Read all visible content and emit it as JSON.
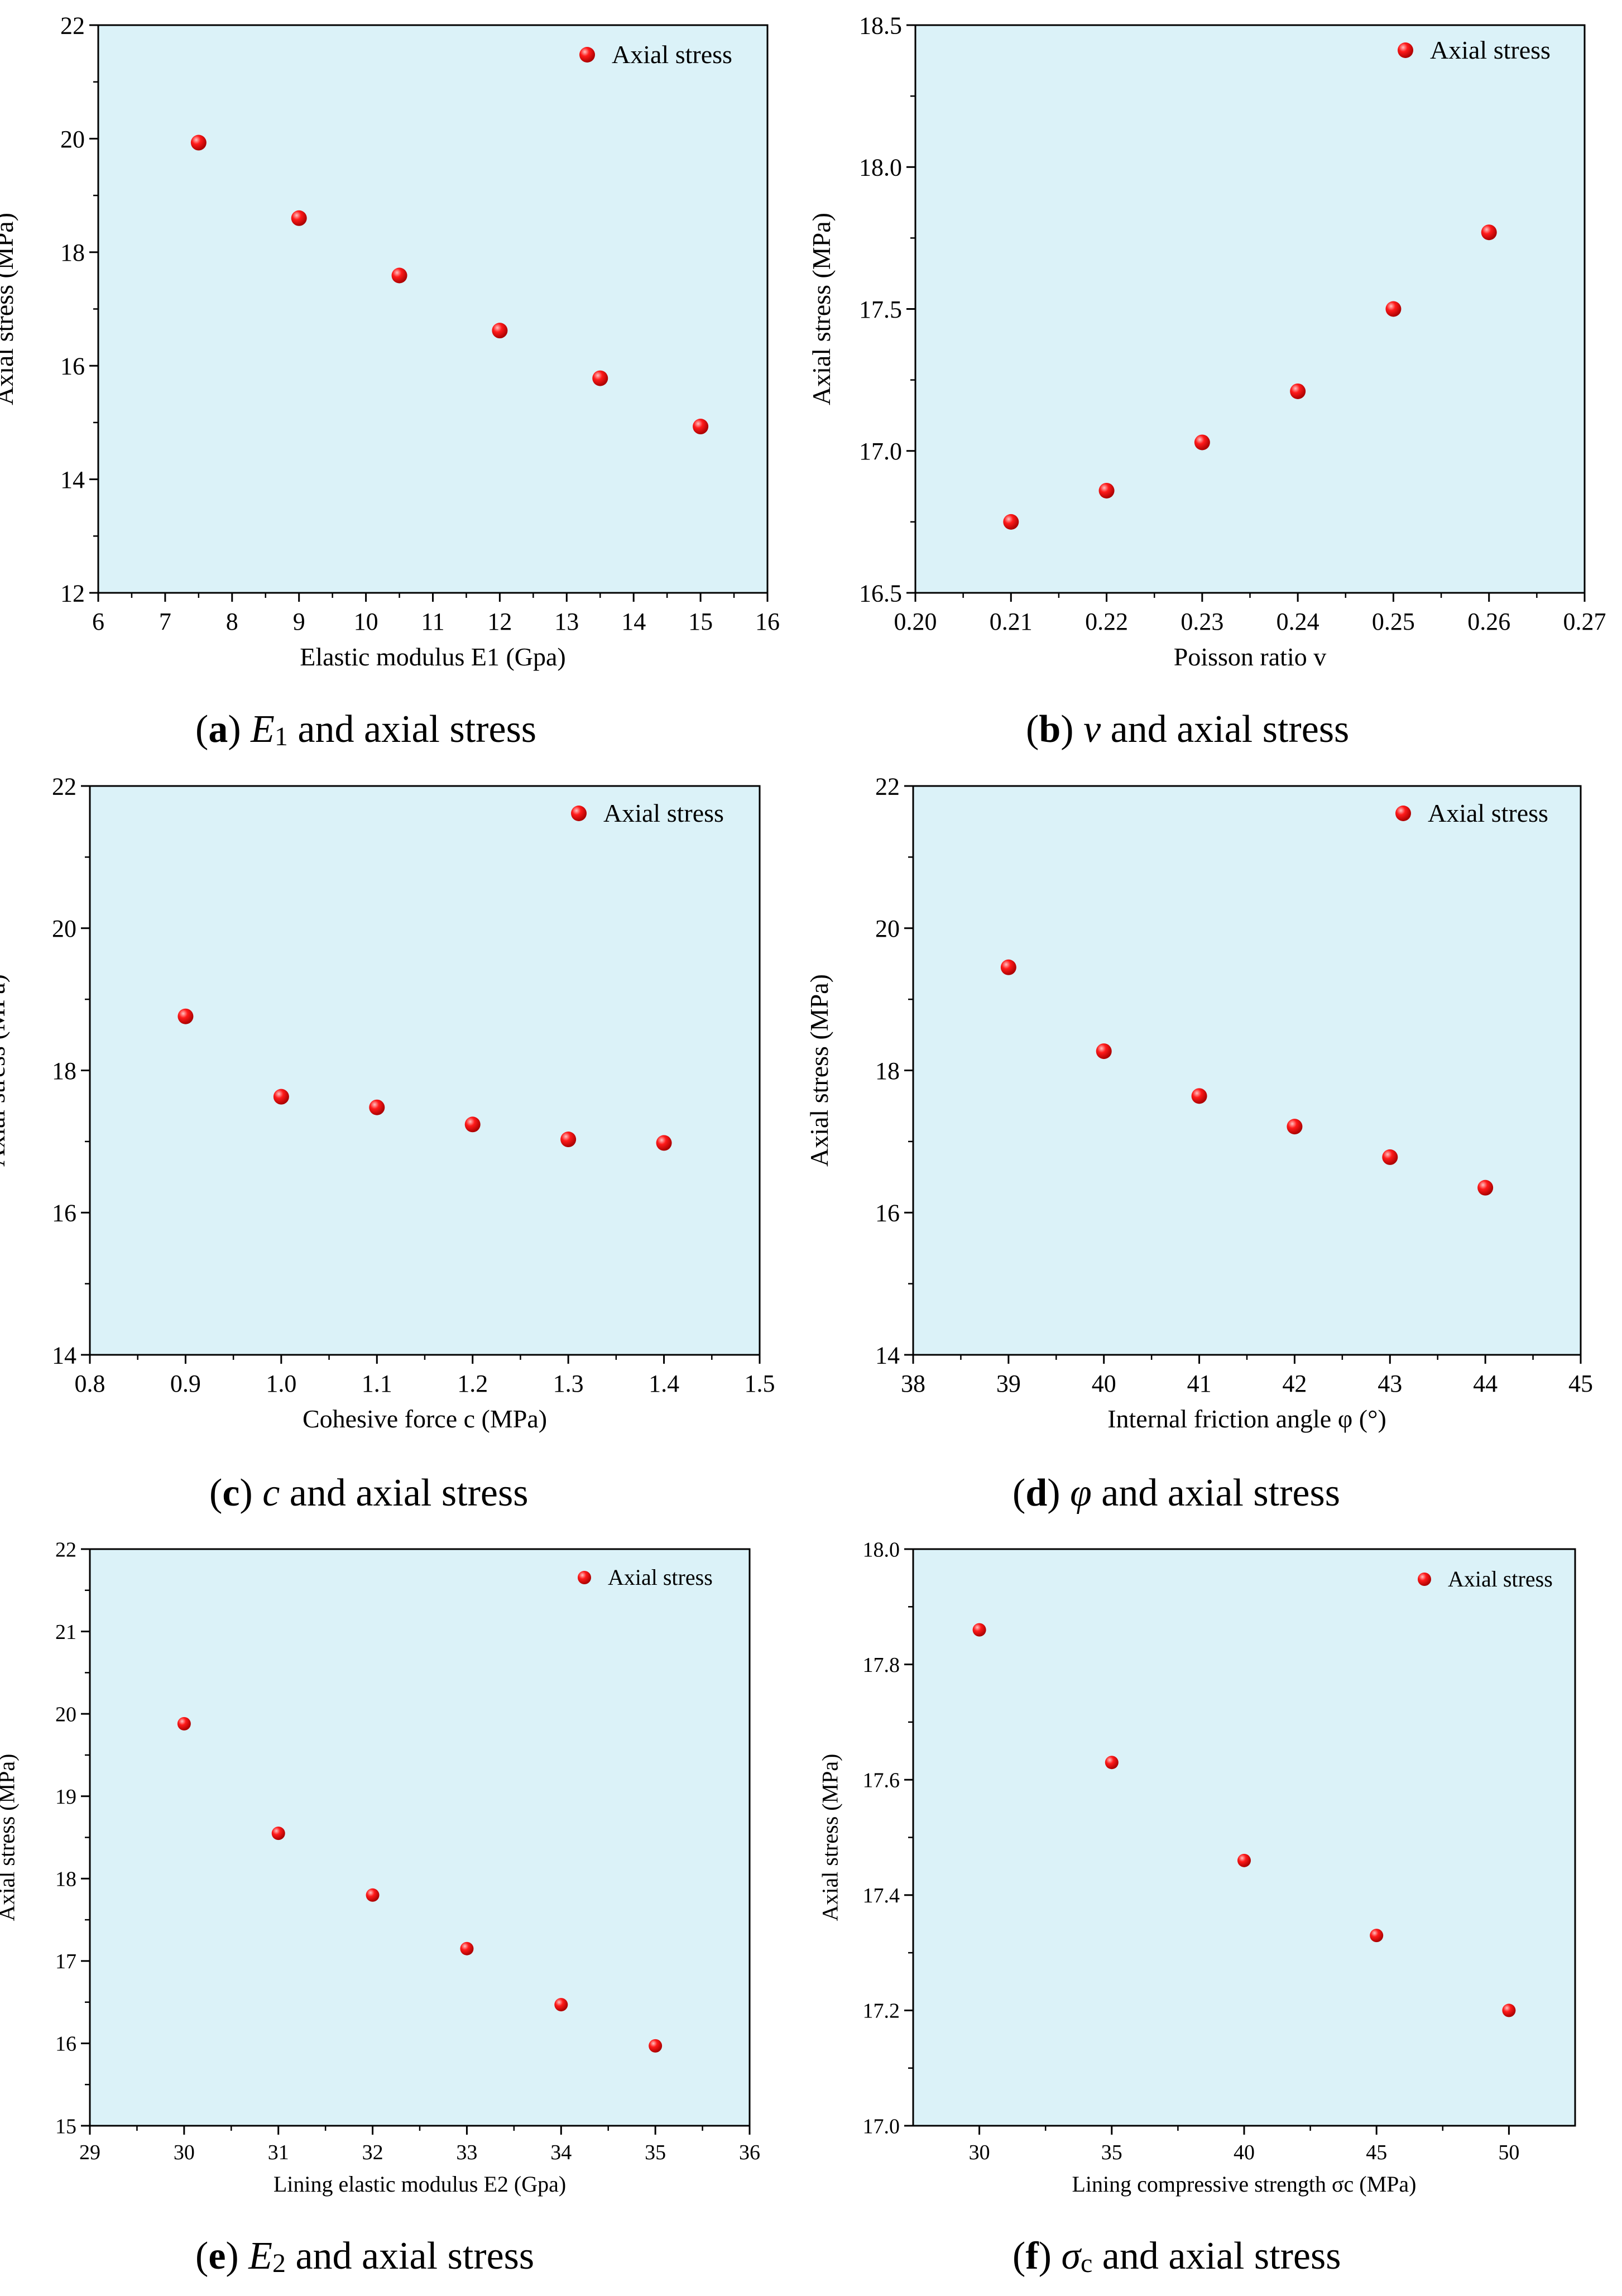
{
  "chart_data": [
    {
      "type": "scatter",
      "panel": "a",
      "legend": "Axial stress",
      "legend_position": "top-right",
      "xlabel": "Elastic modulus E1 (Gpa)",
      "ylabel": "Axial stress (MPa)",
      "xlim": [
        6,
        16
      ],
      "ylim": [
        12,
        22
      ],
      "xticks": [
        6,
        7,
        8,
        9,
        10,
        11,
        12,
        13,
        14,
        15,
        16
      ],
      "yticks": [
        12,
        14,
        16,
        18,
        20,
        22
      ],
      "xtick_labels": [
        "6",
        "7",
        "8",
        "9",
        "10",
        "11",
        "12",
        "13",
        "14",
        "15",
        "16"
      ],
      "ytick_labels": [
        "12",
        "14",
        "16",
        "18",
        "20",
        "22"
      ],
      "x": [
        7.5,
        9,
        10.5,
        12,
        13.5,
        15
      ],
      "y": [
        19.93,
        18.6,
        17.59,
        16.62,
        15.78,
        14.93
      ],
      "caption": {
        "letter": "a",
        "symbol": "E",
        "sub": "1",
        "rest": " and axial stress"
      }
    },
    {
      "type": "scatter",
      "panel": "b",
      "legend": "Axial stress",
      "legend_position": "top-right",
      "xlabel": "Poisson ratio v",
      "ylabel": "Axial stress (MPa)",
      "xlim": [
        0.2,
        0.27
      ],
      "ylim": [
        16.5,
        18.5
      ],
      "xticks": [
        0.2,
        0.21,
        0.22,
        0.23,
        0.24,
        0.25,
        0.26,
        0.27
      ],
      "yticks": [
        16.5,
        17.0,
        17.5,
        18.0,
        18.5
      ],
      "xtick_labels": [
        "0.20",
        "0.21",
        "0.22",
        "0.23",
        "0.24",
        "0.25",
        "0.26",
        "0.27"
      ],
      "ytick_labels": [
        "16.5",
        "17.0",
        "17.5",
        "18.0",
        "18.5"
      ],
      "x": [
        0.21,
        0.22,
        0.23,
        0.24,
        0.25,
        0.26
      ],
      "y": [
        16.75,
        16.86,
        17.03,
        17.21,
        17.5,
        17.77
      ],
      "caption": {
        "letter": "b",
        "symbol": "v",
        "sub": "",
        "rest": " and axial stress"
      }
    },
    {
      "type": "scatter",
      "panel": "c",
      "legend": "Axial stress",
      "legend_position": "top-right",
      "xlabel": "Cohesive force c (MPa)",
      "ylabel": "Axial stress (MPa)",
      "xlim": [
        0.8,
        1.5
      ],
      "ylim": [
        14,
        22
      ],
      "xticks": [
        0.8,
        0.9,
        1.0,
        1.1,
        1.2,
        1.3,
        1.4,
        1.5
      ],
      "yticks": [
        14,
        16,
        18,
        20,
        22
      ],
      "xtick_labels": [
        "0.8",
        "0.9",
        "1.0",
        "1.1",
        "1.2",
        "1.3",
        "1.4",
        "1.5"
      ],
      "ytick_labels": [
        "14",
        "16",
        "18",
        "20",
        "22"
      ],
      "x": [
        0.9,
        1.0,
        1.1,
        1.2,
        1.3,
        1.4
      ],
      "y": [
        18.76,
        17.63,
        17.48,
        17.24,
        17.03,
        16.98
      ],
      "caption": {
        "letter": "c",
        "symbol": "c",
        "sub": "",
        "rest": " and axial stress"
      }
    },
    {
      "type": "scatter",
      "panel": "d",
      "legend": "Axial stress",
      "legend_position": "top-right",
      "xlabel": "Internal friction angle φ (°)",
      "ylabel": "Axial stress (MPa)",
      "xlim": [
        38,
        45
      ],
      "ylim": [
        14,
        22
      ],
      "xticks": [
        38,
        39,
        40,
        41,
        42,
        43,
        44,
        45
      ],
      "yticks": [
        14,
        16,
        18,
        20,
        22
      ],
      "xtick_labels": [
        "38",
        "39",
        "40",
        "41",
        "42",
        "43",
        "44",
        "45"
      ],
      "ytick_labels": [
        "14",
        "16",
        "18",
        "20",
        "22"
      ],
      "x": [
        39,
        40,
        41,
        42,
        43,
        44
      ],
      "y": [
        19.45,
        18.27,
        17.64,
        17.21,
        16.78,
        16.35
      ],
      "caption": {
        "letter": "d",
        "symbol": "φ",
        "sub": "",
        "rest": "  and axial stress"
      }
    },
    {
      "type": "scatter",
      "panel": "e",
      "legend": "Axial stress",
      "legend_position": "top-right",
      "xlabel": "Lining elastic modulus E2 (Gpa)",
      "ylabel": "Axial stress (MPa)",
      "xlim": [
        29,
        36
      ],
      "ylim": [
        15,
        22
      ],
      "xticks": [
        29,
        30,
        31,
        32,
        33,
        34,
        35,
        36
      ],
      "yticks": [
        15,
        16,
        17,
        18,
        19,
        20,
        21,
        22
      ],
      "xtick_labels": [
        "29",
        "30",
        "31",
        "32",
        "33",
        "34",
        "35",
        "36"
      ],
      "ytick_labels": [
        "15",
        "16",
        "17",
        "18",
        "19",
        "20",
        "21",
        "22"
      ],
      "x": [
        30,
        31,
        32,
        33,
        34,
        35
      ],
      "y": [
        19.88,
        18.55,
        17.8,
        17.15,
        16.47,
        15.97
      ],
      "caption": {
        "letter": "e",
        "symbol": "E",
        "sub": "2",
        "rest": " and axial stress"
      }
    },
    {
      "type": "scatter",
      "panel": "f",
      "legend": "Axial stress",
      "legend_position": "top-right",
      "xlabel": "Lining compressive strength σc (MPa)",
      "ylabel": "Axial stress (MPa)",
      "xlim": [
        27.5,
        52.5
      ],
      "ylim": [
        17.0,
        18.0
      ],
      "xticks": [
        30,
        35,
        40,
        45,
        50
      ],
      "yticks": [
        17.0,
        17.2,
        17.4,
        17.6,
        17.8,
        18.0
      ],
      "xtick_labels": [
        "30",
        "35",
        "40",
        "45",
        "50"
      ],
      "ytick_labels": [
        "17.0",
        "17.2",
        "17.4",
        "17.6",
        "17.8",
        "18.0"
      ],
      "x": [
        30,
        35,
        40,
        45,
        50
      ],
      "y": [
        17.86,
        17.63,
        17.46,
        17.33,
        17.2
      ],
      "caption": {
        "letter": "f",
        "symbol": "σ",
        "sub": "c",
        "rest": "  and axial stress"
      }
    }
  ],
  "colors": {
    "plot_background": "#dbf2f8",
    "marker": "#e8000b",
    "marker_highlight": "#ffb3b3",
    "axis": "#000000"
  }
}
